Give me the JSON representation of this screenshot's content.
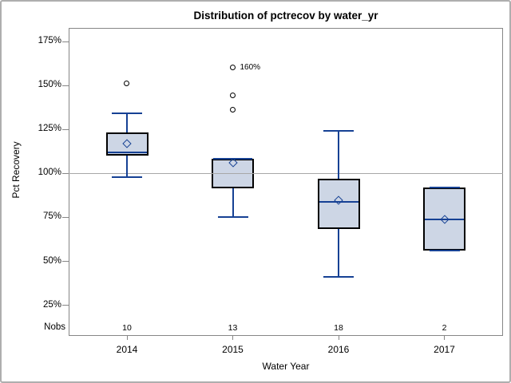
{
  "title": "Distribution of pctrecov by water_yr",
  "y_axis": {
    "label": "Pct Recovery",
    "tick_labels": [
      "175%",
      "150%",
      "125%",
      "100%",
      "75%",
      "50%",
      "25%"
    ],
    "tick_values": [
      175,
      150,
      125,
      100,
      75,
      50,
      25
    ]
  },
  "x_axis": {
    "label": "Water Year",
    "tick_labels": [
      "2014",
      "2015",
      "2016",
      "2017"
    ]
  },
  "nobs": {
    "label": "Nobs",
    "values": [
      "10",
      "13",
      "18",
      "2"
    ]
  },
  "colors": {
    "box_fill": "#cdd6e5",
    "box_border": "#000000",
    "line_blue": "#164194",
    "reference_line": "#a8a8a8",
    "frame_gray": "#868686",
    "outlier_stroke": "#000000"
  },
  "chart_data": {
    "type": "boxplot",
    "title": "Distribution of pctrecov by water_yr",
    "xlabel": "Water Year",
    "ylabel": "Pct Recovery",
    "y_unit": "%",
    "ylim": [
      20,
      180
    ],
    "grid": false,
    "reference_line_y": 100,
    "categories": [
      "2014",
      "2015",
      "2016",
      "2017"
    ],
    "nobs": [
      10,
      13,
      18,
      2
    ],
    "series": [
      {
        "category": "2014",
        "n": 10,
        "whisker_low": 98,
        "q1": 110,
        "median": 112,
        "q3": 123.5,
        "whisker_high": 134,
        "mean": 117,
        "outliers": [
          151
        ]
      },
      {
        "category": "2015",
        "n": 13,
        "whisker_low": 75,
        "q1": 91.5,
        "median": 108.5,
        "q3": 108.5,
        "whisker_high": 108.5,
        "mean": 106,
        "outliers": [
          136,
          144,
          160
        ]
      },
      {
        "category": "2016",
        "n": 18,
        "whisker_low": 41,
        "q1": 68.5,
        "median": 84,
        "q3": 97,
        "whisker_high": 124,
        "mean": 84.5,
        "outliers": []
      },
      {
        "category": "2017",
        "n": 2,
        "whisker_low": 56,
        "q1": 56,
        "median": 74,
        "q3": 92,
        "whisker_high": 92,
        "mean": 74,
        "outliers": []
      }
    ],
    "annotations": [
      {
        "text": "160%",
        "series_index": 1,
        "value": 160
      }
    ]
  }
}
